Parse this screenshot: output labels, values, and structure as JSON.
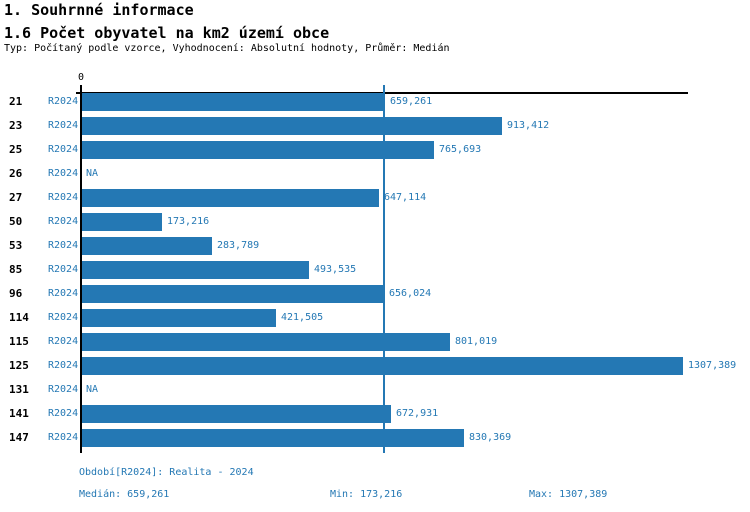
{
  "header": {
    "title1": "1. Souhrnné informace",
    "title2": "1.6 Počet obyvatel na km2 území obce",
    "subtitle": "Typ: Počítaný podle vzorce, Vyhodnocení: Absolutní hodnoty, Průměr: Medián"
  },
  "chart_data": {
    "type": "bar",
    "orientation": "horizontal",
    "title": "1.6 Počet obyvatel na km2 území obce",
    "subtitle": "Typ: Počítaný podle vzorce, Vyhodnocení: Absolutní hodnoty, Průměr: Medián",
    "series_label": "R2024",
    "axis_zero_label": "0",
    "categories": [
      "21",
      "23",
      "25",
      "26",
      "27",
      "50",
      "53",
      "85",
      "96",
      "114",
      "115",
      "125",
      "131",
      "141",
      "147"
    ],
    "values": [
      659.261,
      913.412,
      765.693,
      null,
      647.114,
      173.216,
      283.789,
      493.535,
      656.024,
      421.505,
      801.019,
      1307.389,
      null,
      672.931,
      830.369
    ],
    "value_labels": [
      "659,261",
      "913,412",
      "765,693",
      "NA",
      "647,114",
      "173,216",
      "283,789",
      "493,535",
      "656,024",
      "421,505",
      "801,019",
      "1307,389",
      "NA",
      "672,931",
      "830,369"
    ],
    "stats": {
      "median": 659.261,
      "min": 173.216,
      "max": 1307.389
    },
    "xlim": [
      0,
      1318
    ],
    "grid": false,
    "legend_position": "none",
    "bar_color": "#2478b4",
    "median_line_color": "#2478b4",
    "axis_color": "#000000",
    "label_color": "#2478b4"
  },
  "footer": {
    "period": "Období[R2024]: Realita - 2024",
    "median": "Medián: 659,261",
    "min": "Min: 173,216",
    "max": "Max: 1307,389"
  }
}
